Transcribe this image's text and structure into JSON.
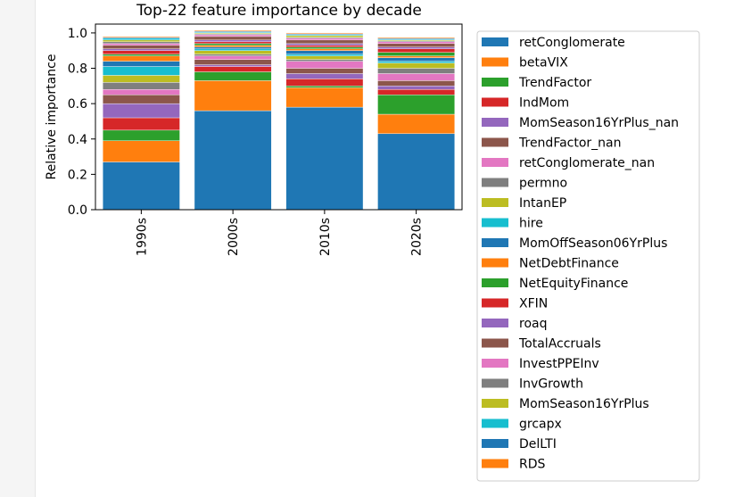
{
  "chart_data": {
    "type": "bar",
    "stacked": true,
    "title": "Top-22 feature importance by decade",
    "xlabel": "",
    "ylabel": "Relative importance",
    "ylim": [
      0,
      1.05
    ],
    "yticks": [
      "0.0",
      "0.2",
      "0.4",
      "0.6",
      "0.8",
      "1.0"
    ],
    "categories": [
      "1990s",
      "2000s",
      "2010s",
      "2020s"
    ],
    "grid": false,
    "legend_position": "right, outside plot",
    "series": [
      {
        "name": "retConglomerate",
        "color": "#1f77b4",
        "values": [
          0.27,
          0.56,
          0.58,
          0.43
        ]
      },
      {
        "name": "betaVIX",
        "color": "#ff7f0e",
        "values": [
          0.12,
          0.17,
          0.11,
          0.11
        ]
      },
      {
        "name": "TrendFactor",
        "color": "#2ca02c",
        "values": [
          0.06,
          0.05,
          0.01,
          0.11
        ]
      },
      {
        "name": "IndMom",
        "color": "#d62728",
        "values": [
          0.07,
          0.03,
          0.04,
          0.03
        ]
      },
      {
        "name": "MomSeason16YrPlus_nan",
        "color": "#9467bd",
        "values": [
          0.08,
          0.01,
          0.03,
          0.02
        ]
      },
      {
        "name": "TrendFactor_nan",
        "color": "#8c564b",
        "values": [
          0.05,
          0.03,
          0.03,
          0.03
        ]
      },
      {
        "name": "retConglomerate_nan",
        "color": "#e377c2",
        "values": [
          0.03,
          0.02,
          0.04,
          0.04
        ]
      },
      {
        "name": "permno",
        "color": "#7f7f7f",
        "values": [
          0.04,
          0.01,
          0.01,
          0.03
        ]
      },
      {
        "name": "IntanEP",
        "color": "#bcbd22",
        "values": [
          0.04,
          0.02,
          0.02,
          0.03
        ]
      },
      {
        "name": "hire",
        "color": "#17becf",
        "values": [
          0.05,
          0.01,
          0.01,
          0.01
        ]
      },
      {
        "name": "MomOffSeason06YrPlus",
        "color": "#1f77b4",
        "values": [
          0.03,
          0.01,
          0.02,
          0.02
        ]
      },
      {
        "name": "NetDebtFinance",
        "color": "#ff7f0e",
        "values": [
          0.03,
          0.01,
          0.01,
          0.01
        ]
      },
      {
        "name": "NetEquityFinance",
        "color": "#2ca02c",
        "values": [
          0.01,
          0.01,
          0.01,
          0.02
        ]
      },
      {
        "name": "XFIN",
        "color": "#d62728",
        "values": [
          0.02,
          0.01,
          0.01,
          0.02
        ]
      },
      {
        "name": "roaq",
        "color": "#9467bd",
        "values": [
          0.01,
          0.01,
          0.01,
          0.01
        ]
      },
      {
        "name": "TotalAccruals",
        "color": "#8c564b",
        "values": [
          0.02,
          0.02,
          0.02,
          0.02
        ]
      },
      {
        "name": "InvestPPEInv",
        "color": "#e377c2",
        "values": [
          0.01,
          0.01,
          0.01,
          0.01
        ]
      },
      {
        "name": "InvGrowth",
        "color": "#7f7f7f",
        "values": [
          0.01,
          0.005,
          0.005,
          0.005
        ]
      },
      {
        "name": "MomSeason16YrPlus",
        "color": "#bcbd22",
        "values": [
          0.01,
          0.005,
          0.01,
          0.005
        ]
      },
      {
        "name": "grcapx",
        "color": "#17becf",
        "values": [
          0.01,
          0.005,
          0.005,
          0.005
        ]
      },
      {
        "name": "DelLTI",
        "color": "#1f77b4",
        "values": [
          0.005,
          0.005,
          0.005,
          0.005
        ]
      },
      {
        "name": "RDS",
        "color": "#ff7f0e",
        "values": [
          0.005,
          0.005,
          0.005,
          0.005
        ]
      }
    ]
  }
}
